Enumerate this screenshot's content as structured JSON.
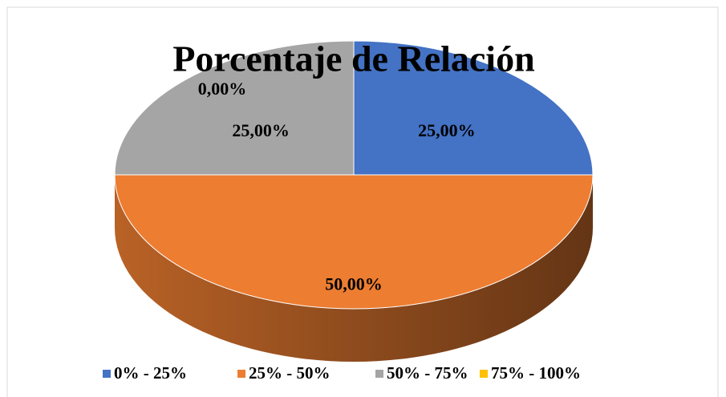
{
  "chart_data": {
    "type": "pie",
    "title": "Porcentaje de Relación",
    "categories": [
      "0% - 25%",
      "25% - 50%",
      "50% - 75%",
      "75% - 100%"
    ],
    "values": [
      25,
      50,
      25,
      0
    ],
    "value_labels": [
      "25,00%",
      "50,00%",
      "25,00%",
      "0,00%"
    ],
    "colors": [
      "#4472c4",
      "#ed7d31",
      "#a5a5a5",
      "#ffc000"
    ],
    "legend": "bottom"
  }
}
